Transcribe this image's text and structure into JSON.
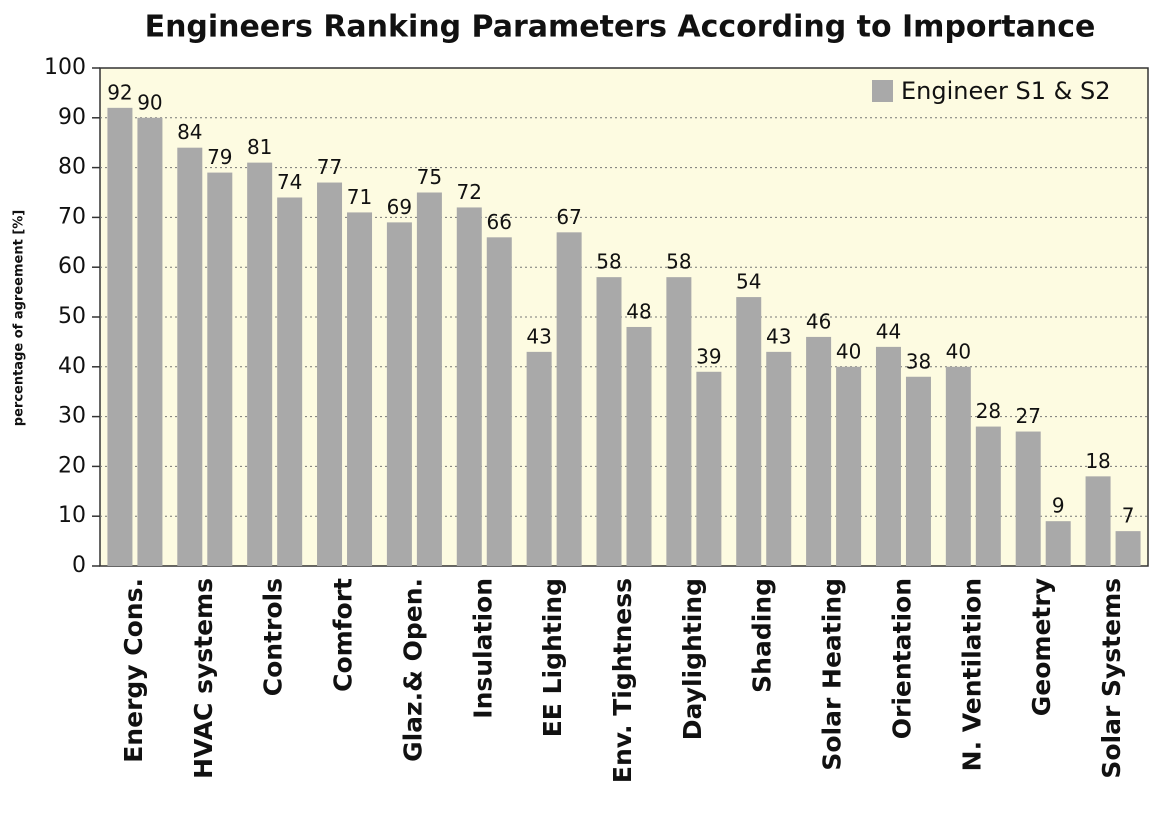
{
  "chart_data": {
    "type": "bar",
    "title": "Engineers Ranking Parameters According to Importance",
    "y_axis_label": "percentage of agreement [%]",
    "categories": [
      "Energy Cons.",
      "HVAC systems",
      "Controls",
      "Comfort",
      "Glaz.& Open.",
      "Insulation",
      "EE Lighting",
      "Env. Tightness",
      "Daylighting",
      "Shading",
      "Solar Heating",
      "Orientation",
      "N. Ventilation",
      "Geometry",
      "Solar Systems"
    ],
    "series": [
      {
        "name": "Engineer S1 & S2",
        "color": "#a9a9a9",
        "values": [
          [
            92,
            90
          ],
          [
            84,
            79
          ],
          [
            81,
            74
          ],
          [
            77,
            71
          ],
          [
            69,
            75
          ],
          [
            72,
            66
          ],
          [
            43,
            67
          ],
          [
            58,
            48
          ],
          [
            58,
            39
          ],
          [
            54,
            43
          ],
          [
            46,
            40
          ],
          [
            44,
            38
          ],
          [
            40,
            28
          ],
          [
            27,
            9
          ],
          [
            18,
            7
          ]
        ]
      }
    ],
    "ylim": [
      0,
      100
    ],
    "yticks": [
      0,
      10,
      20,
      30,
      40,
      50,
      60,
      70,
      80,
      90,
      100
    ],
    "grid": true,
    "legend": "upper right"
  }
}
